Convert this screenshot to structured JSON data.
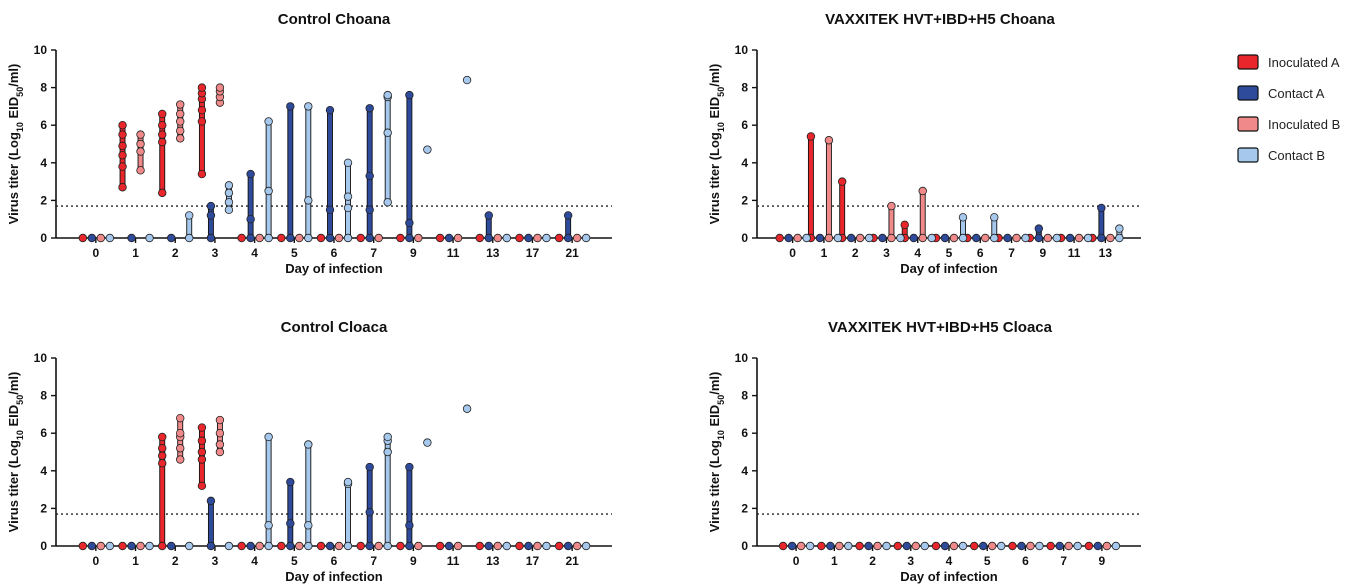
{
  "legend": {
    "placement": "top-right",
    "entries": [
      {
        "name": "Inoculated A",
        "color": "#e8262b"
      },
      {
        "name": "Contact A",
        "color": "#2e4a9a"
      },
      {
        "name": "Inoculated B",
        "color": "#f08a8a"
      },
      {
        "name": "Contact B",
        "color": "#a6c8ec"
      }
    ]
  },
  "chart_data": [
    {
      "id": "control-choana",
      "type": "scatter",
      "title": "Control Choana",
      "xlabel": "Day of infection",
      "ylabel_main": "Virus titer (Log",
      "ylabel_sub10": "10",
      "ylabel_mid": " EID",
      "ylabel_sub50": "50",
      "ylabel_end": "/ml)",
      "ylim": [
        0,
        10
      ],
      "yticks": [
        "0",
        "2",
        "4",
        "6",
        "8",
        "10"
      ],
      "detection_limit": 1.7,
      "days": [
        "0",
        "1",
        "2",
        "3",
        "4",
        "5",
        "6",
        "7",
        "9",
        "11",
        "13",
        "17",
        "21"
      ],
      "series": {
        "Inoculated A": [
          [
            0
          ],
          [
            2.7,
            3.8,
            4.4,
            4.9,
            5.5,
            6.0
          ],
          [
            2.4,
            5.1,
            5.5,
            6.0,
            6.6
          ],
          [
            3.4,
            6.2,
            6.8,
            7.4,
            7.7,
            8.0
          ],
          [
            0
          ],
          [
            0
          ],
          [
            0
          ],
          [
            0
          ],
          [
            0
          ],
          [
            0
          ],
          [
            0
          ],
          [
            0
          ],
          [
            0
          ]
        ],
        "Contact A": [
          [
            0
          ],
          [
            0
          ],
          [
            0
          ],
          [
            0,
            1.2,
            1.7
          ],
          [
            0,
            1.0,
            3.4
          ],
          [
            0,
            7.0
          ],
          [
            0,
            1.5,
            6.8
          ],
          [
            0,
            1.5,
            3.3,
            6.9
          ],
          [
            0,
            0.8,
            7.6
          ],
          [
            0
          ],
          [
            0,
            1.2
          ],
          [
            0
          ],
          [
            0,
            1.2
          ]
        ],
        "Inoculated B": [
          [
            0
          ],
          [
            3.6,
            4.6,
            5.0,
            5.5
          ],
          [
            5.3,
            5.7,
            6.2,
            6.6,
            7.1
          ],
          [
            7.2,
            7.5,
            7.8,
            8.0
          ],
          [
            0
          ],
          [
            0
          ],
          [
            0
          ],
          [
            0
          ],
          [
            0
          ],
          [
            0
          ],
          [
            0
          ],
          [
            0
          ],
          [
            0
          ]
        ],
        "Contact B": [
          [
            0
          ],
          [
            0
          ],
          [
            0,
            1.2
          ],
          [
            1.5,
            1.9,
            2.4,
            2.8
          ],
          [
            0,
            2.5,
            6.2
          ],
          [
            0,
            2.0,
            7.0
          ],
          [
            0,
            1.6,
            2.2,
            4.0
          ],
          [
            1.9,
            5.6,
            7.5,
            7.6
          ],
          [
            4.7
          ],
          [
            8.4
          ],
          [
            0
          ],
          [
            0
          ],
          [
            0
          ]
        ]
      }
    },
    {
      "id": "vaxxitek-choana",
      "type": "scatter",
      "title": "VAXXITEK HVT+IBD+H5 Choana",
      "xlabel": "Day of infection",
      "ylabel_main": "Virus titer (Log",
      "ylabel_sub10": "10",
      "ylabel_mid": " EID",
      "ylabel_sub50": "50",
      "ylabel_end": "/ml)",
      "ylim": [
        0,
        10
      ],
      "yticks": [
        "0",
        "2",
        "4",
        "6",
        "8",
        "10"
      ],
      "detection_limit": 1.7,
      "days": [
        "0",
        "1",
        "2",
        "3",
        "4",
        "5",
        "6",
        "7",
        "9",
        "11",
        "13"
      ],
      "series": {
        "Inoculated A": [
          [
            0
          ],
          [
            0,
            5.4
          ],
          [
            0,
            3.0
          ],
          [
            0
          ],
          [
            0,
            0.7
          ],
          [
            0
          ],
          [
            0
          ],
          [
            0
          ],
          [
            0
          ],
          [
            0
          ],
          [
            0
          ]
        ],
        "Contact A": [
          [
            0
          ],
          [
            0
          ],
          [
            0
          ],
          [
            0
          ],
          [
            0
          ],
          [
            0
          ],
          [
            0
          ],
          [
            0
          ],
          [
            0,
            0.5
          ],
          [
            0
          ],
          [
            0,
            1.6
          ]
        ],
        "Inoculated B": [
          [
            0
          ],
          [
            0,
            5.2
          ],
          [
            0
          ],
          [
            0,
            1.7
          ],
          [
            0,
            2.5
          ],
          [
            0
          ],
          [
            0
          ],
          [
            0
          ],
          [
            0
          ],
          [
            0
          ],
          [
            0
          ]
        ],
        "Contact B": [
          [
            0
          ],
          [
            0
          ],
          [
            0
          ],
          [
            0
          ],
          [
            0
          ],
          [
            0,
            1.1
          ],
          [
            0,
            1.1
          ],
          [
            0
          ],
          [
            0
          ],
          [
            0
          ],
          [
            0,
            0.5
          ]
        ]
      }
    },
    {
      "id": "control-cloaca",
      "type": "scatter",
      "title": "Control Cloaca",
      "xlabel": "Day of infection",
      "ylabel_main": "Virus titer (Log",
      "ylabel_sub10": "10",
      "ylabel_mid": " EID",
      "ylabel_sub50": "50",
      "ylabel_end": "/ml)",
      "ylim": [
        0,
        10
      ],
      "yticks": [
        "0",
        "2",
        "4",
        "6",
        "8",
        "10"
      ],
      "detection_limit": 1.7,
      "days": [
        "0",
        "1",
        "2",
        "3",
        "4",
        "5",
        "6",
        "7",
        "9",
        "11",
        "13",
        "17",
        "21"
      ],
      "series": {
        "Inoculated A": [
          [
            0
          ],
          [
            0
          ],
          [
            0,
            4.4,
            4.8,
            5.2,
            5.8
          ],
          [
            3.2,
            4.6,
            5.0,
            5.6,
            6.3
          ],
          [
            0
          ],
          [
            0
          ],
          [
            0
          ],
          [
            0
          ],
          [
            0
          ],
          [
            0
          ],
          [
            0
          ],
          [
            0
          ],
          [
            0
          ]
        ],
        "Contact A": [
          [
            0
          ],
          [
            0
          ],
          [
            0
          ],
          [
            0,
            2.4
          ],
          [
            0
          ],
          [
            0,
            1.2,
            3.4
          ],
          [
            0
          ],
          [
            0,
            1.8,
            4.2
          ],
          [
            0,
            1.1,
            4.2
          ],
          [
            0
          ],
          [
            0
          ],
          [
            0
          ],
          [
            0
          ]
        ],
        "Inoculated B": [
          [
            0
          ],
          [
            0
          ],
          [
            4.6,
            5.2,
            5.8,
            6.0,
            6.8
          ],
          [
            5.0,
            5.4,
            6.0,
            6.7
          ],
          [
            0
          ],
          [
            0
          ],
          [
            0
          ],
          [
            0
          ],
          [
            0
          ],
          [
            0
          ],
          [
            0
          ],
          [
            0
          ],
          [
            0
          ]
        ],
        "Contact B": [
          [
            0
          ],
          [
            0
          ],
          [
            0
          ],
          [
            0
          ],
          [
            0,
            1.1,
            5.8
          ],
          [
            0,
            1.1,
            5.4
          ],
          [
            0,
            3.3,
            3.4
          ],
          [
            0,
            5.0,
            5.6,
            5.8
          ],
          [
            5.5
          ],
          [
            7.3
          ],
          [
            0
          ],
          [
            0
          ],
          [
            0
          ]
        ]
      }
    },
    {
      "id": "vaxxitek-cloaca",
      "type": "scatter",
      "title": "VAXXITEK HVT+IBD+H5 Cloaca",
      "xlabel": "Day of infection",
      "ylabel_main": "Virus titer (Log",
      "ylabel_sub10": "10",
      "ylabel_mid": " EID",
      "ylabel_sub50": "50",
      "ylabel_end": "/ml)",
      "ylim": [
        0,
        10
      ],
      "yticks": [
        "0",
        "2",
        "4",
        "6",
        "8",
        "10"
      ],
      "detection_limit": 1.7,
      "days": [
        "0",
        "1",
        "2",
        "3",
        "4",
        "5",
        "6",
        "7",
        "9"
      ],
      "series": {
        "Inoculated A": [
          [
            0
          ],
          [
            0
          ],
          [
            0
          ],
          [
            0
          ],
          [
            0
          ],
          [
            0
          ],
          [
            0
          ],
          [
            0
          ],
          [
            0
          ]
        ],
        "Contact A": [
          [
            0
          ],
          [
            0
          ],
          [
            0
          ],
          [
            0
          ],
          [
            0
          ],
          [
            0
          ],
          [
            0
          ],
          [
            0
          ],
          [
            0
          ]
        ],
        "Inoculated B": [
          [
            0
          ],
          [
            0
          ],
          [
            0
          ],
          [
            0
          ],
          [
            0
          ],
          [
            0
          ],
          [
            0
          ],
          [
            0
          ],
          [
            0
          ]
        ],
        "Contact B": [
          [
            0
          ],
          [
            0
          ],
          [
            0
          ],
          [
            0
          ],
          [
            0
          ],
          [
            0
          ],
          [
            0
          ],
          [
            0
          ],
          [
            0
          ]
        ]
      }
    }
  ]
}
